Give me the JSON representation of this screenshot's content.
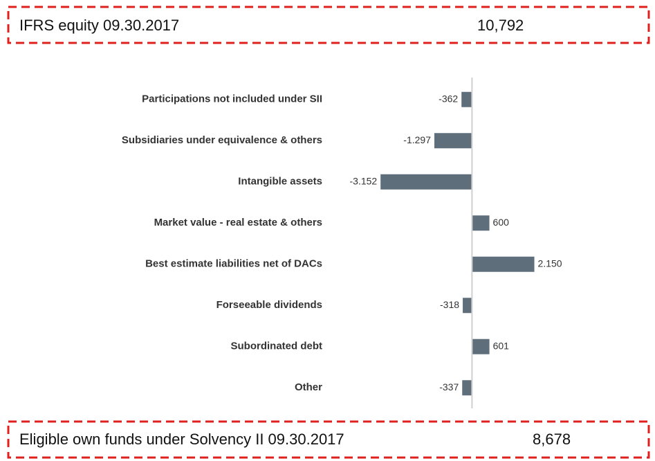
{
  "header": {
    "label": "IFRS equity 09.30.2017",
    "value": "10,792"
  },
  "footer": {
    "label": "Eligible own funds under Solvency II 09.30.2017",
    "value": "8,678"
  },
  "chart_data": {
    "type": "hbar",
    "categories": [
      "Participations not included under SII",
      "Subsidiaries under equivalence & others",
      "Intangible assets",
      "Market value - real estate  & others",
      "Best estimate liabilities net of DACs",
      "Forseeable dividends",
      "Subordinated debt",
      "Other"
    ],
    "values": [
      -362,
      -1297,
      -3152,
      600,
      2150,
      -318,
      601,
      -337
    ],
    "value_labels": [
      "-362",
      "-1.297",
      "-3.152",
      "600",
      "2.150",
      "-318",
      "601",
      "-337"
    ],
    "color": "#5e6e7b",
    "xlim": [
      -3300,
      2900
    ]
  }
}
